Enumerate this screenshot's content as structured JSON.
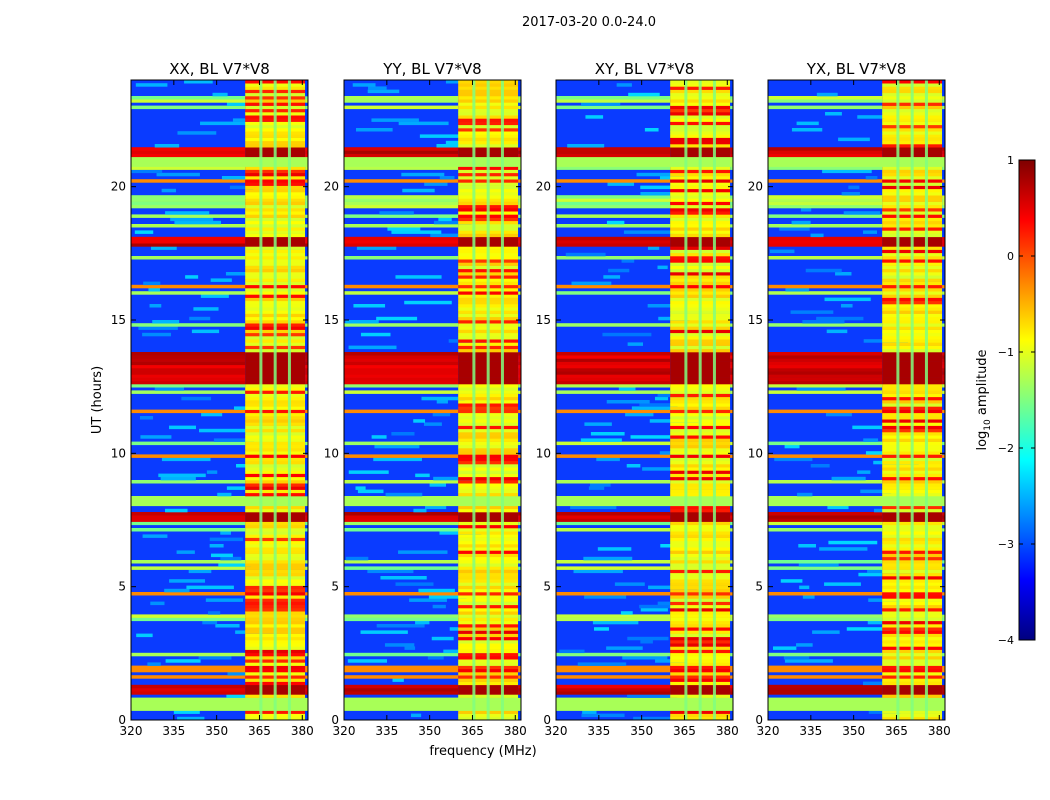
{
  "suptitle": "2017-03-20 0.0-24.0",
  "chart_data": {
    "type": "heatmap",
    "xlabel": "frequency (MHz)",
    "ylabel": "UT (hours)",
    "xlim": [
      320,
      382
    ],
    "ylim": [
      0,
      24
    ],
    "xticks": [
      320,
      335,
      350,
      365,
      380
    ],
    "yticks": [
      0,
      5,
      10,
      15,
      20
    ],
    "colorbar": {
      "label_prefix": "log",
      "label_sub": "10",
      "label_suffix": " amplitude",
      "range": [
        -4,
        1
      ],
      "ticks": [
        1,
        0,
        -1,
        -2,
        -3,
        -4
      ],
      "tick_labels": [
        "1",
        "0",
        "−1",
        "−2",
        "−3",
        "−4"
      ],
      "colormap": "jet",
      "colors": [
        "#00007f",
        "#0000ff",
        "#0080ff",
        "#00ffff",
        "#80ff80",
        "#ffff00",
        "#ff8000",
        "#ff0000",
        "#7f0000"
      ]
    },
    "panels": [
      {
        "title": "XX, BL V7*V8",
        "polarization": "XX",
        "baseline": "V7*V8"
      },
      {
        "title": "YY, BL V7*V8",
        "polarization": "YY",
        "baseline": "V7*V8"
      },
      {
        "title": "XY, BL V7*V8",
        "polarization": "XY",
        "baseline": "V7*V8"
      },
      {
        "title": "YX, BL V7*V8",
        "polarization": "YX",
        "baseline": "V7*V8"
      }
    ],
    "features": {
      "band_start_mhz": 360,
      "band_end_mhz": 381,
      "channel_centers_mhz": [
        363,
        368,
        373,
        378
      ],
      "flagged_rows_ut": [
        0.6,
        8.2,
        21.0
      ],
      "strong_rows_ut": [
        1.1,
        7.6,
        13.0,
        13.4,
        17.9,
        21.3
      ]
    }
  }
}
